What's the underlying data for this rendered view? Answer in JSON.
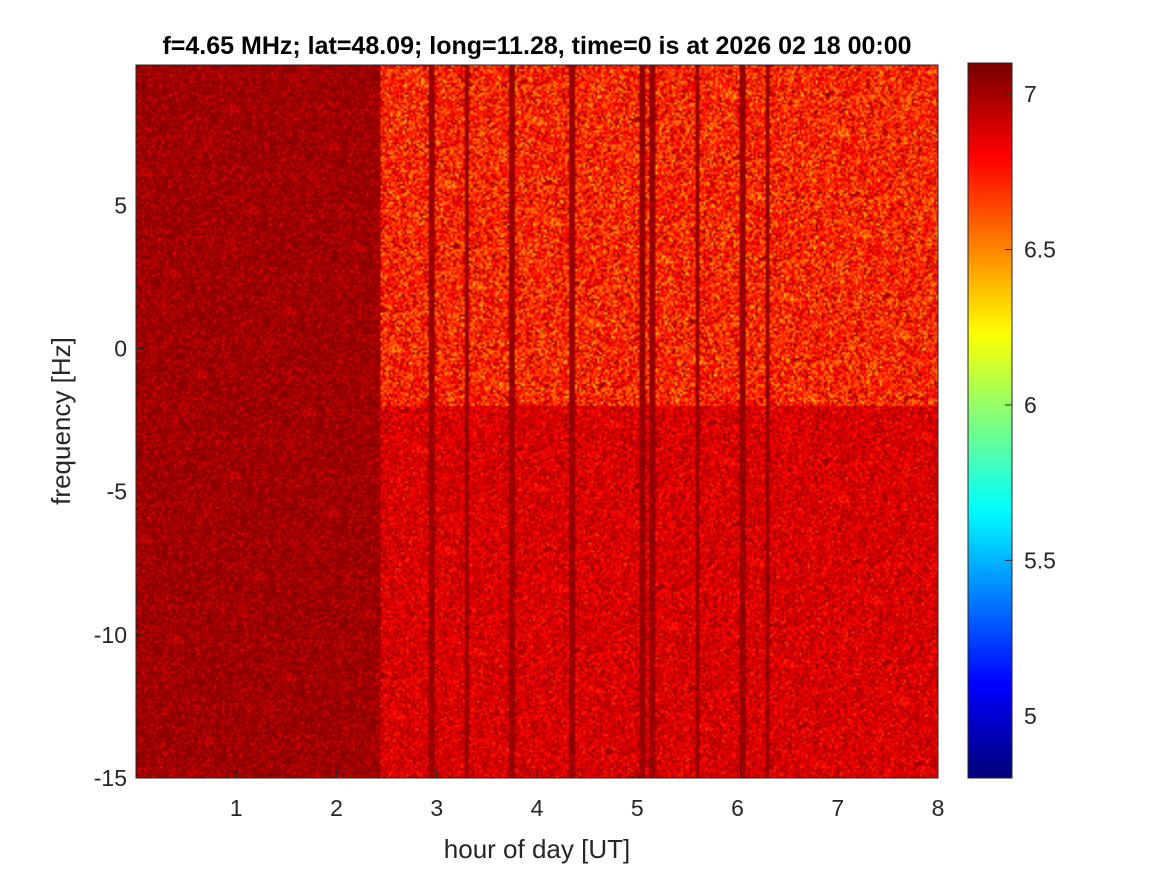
{
  "chart_data": {
    "type": "heatmap",
    "title": "f=4.65 MHz;  lat=48.09; long=11.28, time=0 is at 2026 02 18 00:00",
    "xlabel": "hour of day [UT]",
    "ylabel": "frequency [Hz]",
    "xlim": [
      0,
      8
    ],
    "ylim": [
      -15,
      9.9
    ],
    "x_ticks": [
      "1",
      "2",
      "3",
      "4",
      "5",
      "6",
      "7",
      "8"
    ],
    "x_tick_values": [
      1,
      2,
      3,
      4,
      5,
      6,
      7,
      8
    ],
    "y_ticks": [
      "5",
      "0",
      "-5",
      "-10",
      "-15"
    ],
    "y_tick_values": [
      5,
      0,
      -5,
      -10,
      -15
    ],
    "colorbar": {
      "colormap": "jet",
      "clim": [
        4.8,
        7.1
      ],
      "ticks": [
        "7",
        "6.5",
        "6",
        "5.5",
        "5"
      ],
      "tick_values": [
        7,
        6.5,
        6,
        5.5,
        5
      ]
    },
    "description_regions": [
      {
        "x_range": [
          0,
          2.45
        ],
        "y_range": [
          -15,
          9.9
        ],
        "level": 7.05
      },
      {
        "x_range": [
          2.45,
          8
        ],
        "y_range": [
          -2,
          9.9
        ],
        "level": 6.75
      },
      {
        "x_range": [
          2.45,
          8
        ],
        "y_range": [
          -15,
          -2
        ],
        "level": 6.9
      }
    ],
    "vertical_streaks_hours": [
      2.95,
      3.3,
      3.75,
      4.35,
      5.05,
      5.15,
      5.6,
      6.05,
      6.3
    ]
  }
}
